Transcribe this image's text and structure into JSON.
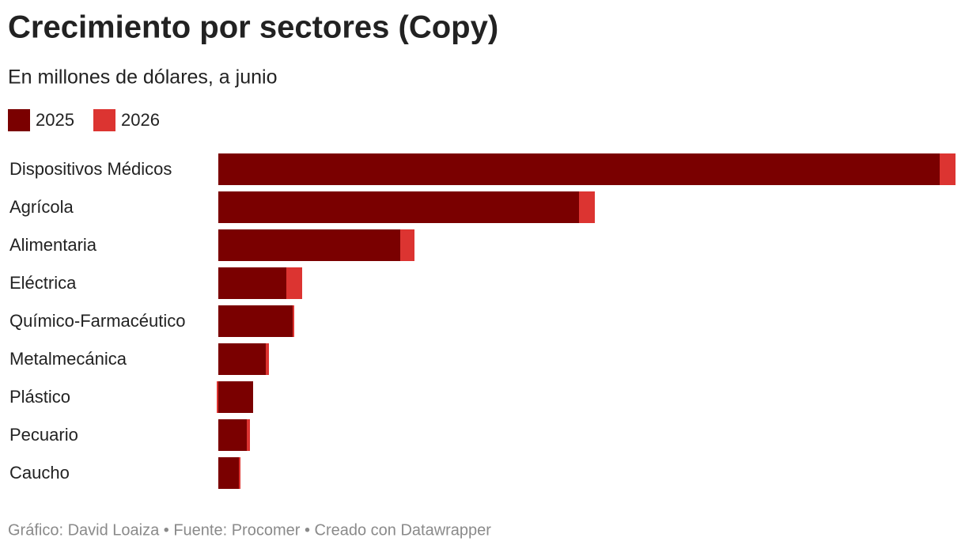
{
  "chart_data": {
    "type": "stacked-bar-horizontal",
    "title": "Crecimiento por sectores (Copy)",
    "subtitle": "En millones de dólares, a junio",
    "footer": "Gráfico: David Loaiza • Fuente: Procomer • Creado con Datawrapper",
    "categories": [
      "Dispositivos Médicos",
      "Agrícola",
      "Alimentaria",
      "Eléctrica",
      "Químico-Farmacéutico",
      "Metalmecánica",
      "Plástico",
      "Pecuario",
      "Caucho"
    ],
    "series": [
      {
        "name": "2025",
        "color": "#7a0000",
        "values": [
          4560,
          2280,
          1150,
          430,
          470,
          300,
          220,
          180,
          130
        ]
      },
      {
        "name": "2026",
        "color": "#dc3431",
        "values": [
          100,
          100,
          90,
          100,
          10,
          20,
          -10,
          20,
          10
        ]
      }
    ],
    "xlim": [
      0,
      4660
    ]
  }
}
